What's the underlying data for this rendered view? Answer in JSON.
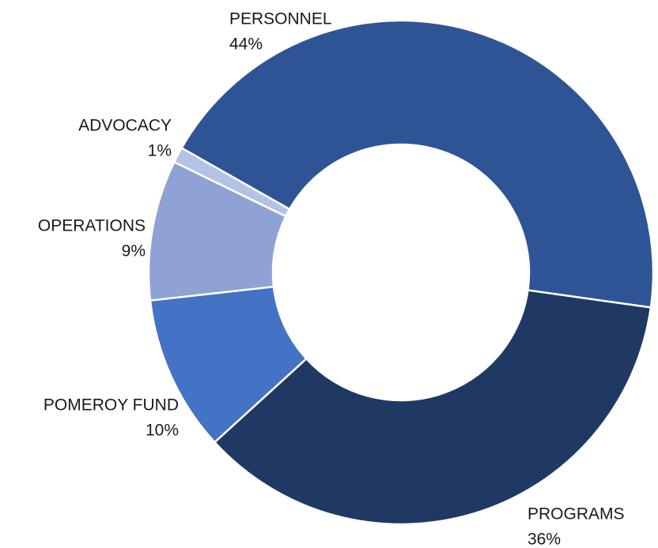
{
  "chart_data": {
    "type": "donut",
    "categories": [
      "PERSONNEL",
      "PROGRAMS",
      "POMEROY FUND",
      "OPERATIONS",
      "ADVOCACY"
    ],
    "values": [
      44,
      36,
      10,
      9,
      1
    ],
    "value_labels": [
      "44%",
      "36%",
      "10%",
      "9%",
      "1%"
    ],
    "colors": [
      "#2f5496",
      "#203864",
      "#4472c4",
      "#8fa2d4",
      "#b4c2e6"
    ]
  }
}
